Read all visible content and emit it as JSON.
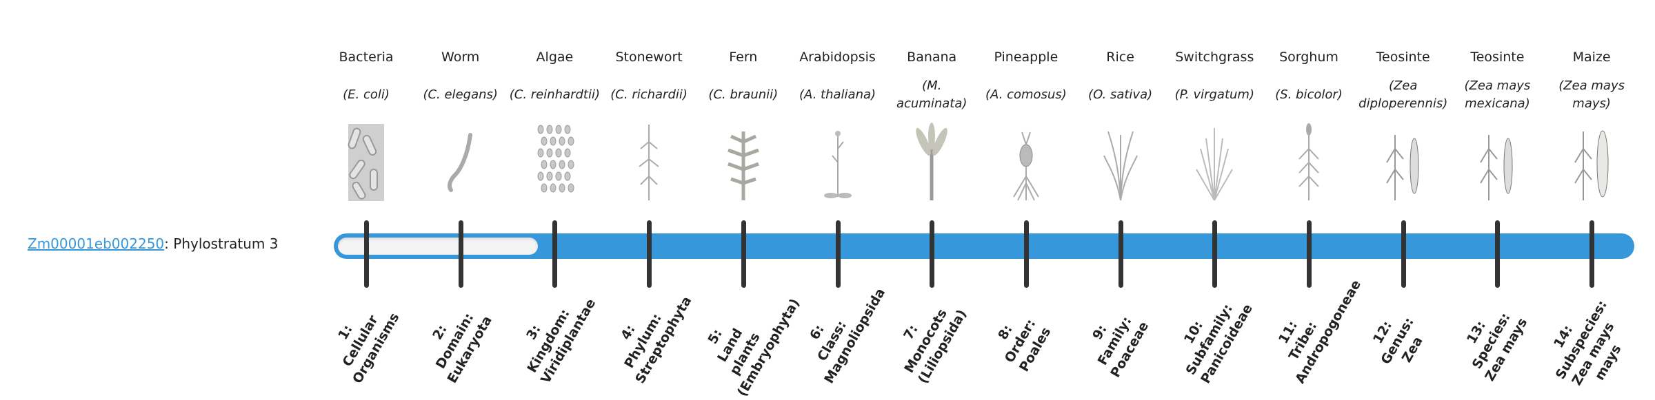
{
  "gene": {
    "id_link": "Zm00001eb002250",
    "suffix": ": Phylostratum 3",
    "phylostratum": 3
  },
  "colors": {
    "bar": "#3797db",
    "empty": "#f3f3f3",
    "tick": "#333333",
    "link": "#3797db"
  },
  "organisms": [
    {
      "common": "Bacteria",
      "sci": "(E. coli)",
      "icon": "bacteria-icon"
    },
    {
      "common": "Worm",
      "sci": "(C. elegans)",
      "icon": "worm-icon"
    },
    {
      "common": "Algae",
      "sci": "(C. reinhardtii)",
      "icon": "algae-icon"
    },
    {
      "common": "Stonewort",
      "sci": "(C. richardii)",
      "icon": "stonewort-icon"
    },
    {
      "common": "Fern",
      "sci": "(C. braunii)",
      "icon": "fern-icon"
    },
    {
      "common": "Arabidopsis",
      "sci": "(A. thaliana)",
      "icon": "arabidopsis-icon"
    },
    {
      "common": "Banana",
      "sci": "(M. acuminata)",
      "icon": "banana-icon"
    },
    {
      "common": "Pineapple",
      "sci": "(A. comosus)",
      "icon": "pineapple-icon"
    },
    {
      "common": "Rice",
      "sci": "(O. sativa)",
      "icon": "rice-icon"
    },
    {
      "common": "Switchgrass",
      "sci": "(P. virgatum)",
      "icon": "switchgrass-icon"
    },
    {
      "common": "Sorghum",
      "sci": "(S. bicolor)",
      "icon": "sorghum-icon"
    },
    {
      "common": "Teosinte",
      "sci": "(Zea diploperennis)",
      "icon": "teosinte-icon"
    },
    {
      "common": "Teosinte",
      "sci": "(Zea mays mexicana)",
      "icon": "teosinte-icon"
    },
    {
      "common": "Maize",
      "sci": "(Zea mays mays)",
      "icon": "maize-icon"
    }
  ],
  "strata": [
    {
      "num": "1:",
      "name": "Cellular Organisms"
    },
    {
      "num": "2:",
      "name": "Domain: Eukaryota"
    },
    {
      "num": "3:",
      "name": "Kingdom: Viridiplantae"
    },
    {
      "num": "4:",
      "name": "Phylum: Streptophyta"
    },
    {
      "num": "5:",
      "name": "Land plants (Embryophyta)"
    },
    {
      "num": "6:",
      "name": "Class: Magnoliopsida"
    },
    {
      "num": "7:",
      "name": "Monocots (Liliopsida)"
    },
    {
      "num": "8:",
      "name": "Order: Poales"
    },
    {
      "num": "9:",
      "name": "Family: Poaceae"
    },
    {
      "num": "10:",
      "name": "Subfamily: Panicoideae"
    },
    {
      "num": "11:",
      "name": "Tribe: Andropogoneae"
    },
    {
      "num": "12:",
      "name": "Genus: Zea"
    },
    {
      "num": "13:",
      "name": "Species: Zea mays"
    },
    {
      "num": "14:",
      "name": "Subspecies: Zea mays mays"
    }
  ]
}
